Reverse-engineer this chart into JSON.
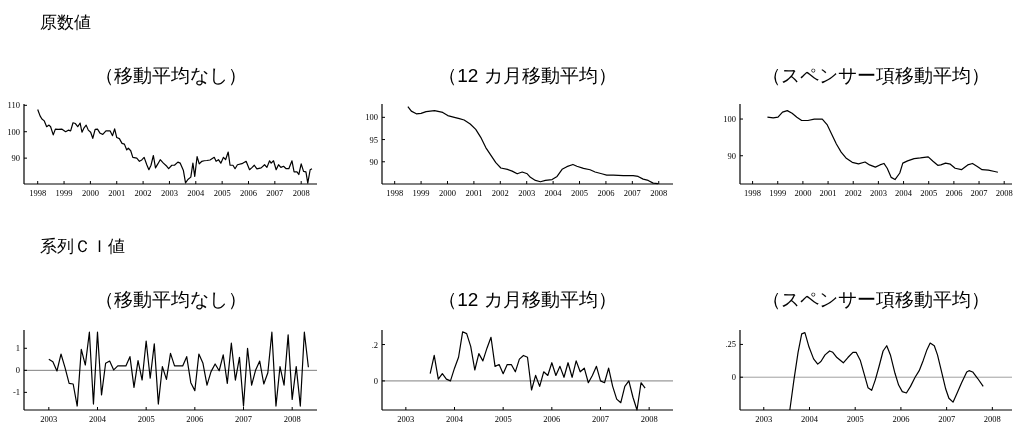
{
  "chart_data": [
    {
      "type": "other",
      "title": "原数値"
    },
    {
      "type": "line",
      "title": "（移動平均なし）",
      "color": "#000000",
      "xlim": [
        1997.48,
        2008.6
      ],
      "ylim": [
        80.2,
        110.5
      ],
      "xticks": [
        1998,
        1999,
        2000,
        2001,
        2002,
        2003,
        2004,
        2005,
        2006,
        2007,
        2008
      ],
      "yticks": [
        90,
        100,
        110
      ],
      "x": [
        1998.0,
        1998.09,
        1998.16,
        1998.25,
        1998.34,
        1998.43,
        1998.49,
        1998.59,
        1998.67,
        1998.78,
        1998.91,
        1999.06,
        1999.16,
        1999.25,
        1999.34,
        1999.43,
        1999.52,
        1999.61,
        1999.68,
        1999.76,
        1999.84,
        1999.92,
        2000.01,
        2000.09,
        2000.18,
        2000.27,
        2000.37,
        2000.47,
        2000.59,
        2000.75,
        2000.84,
        2000.92,
        2001.0,
        2001.1,
        2001.2,
        2001.29,
        2001.38,
        2001.44,
        2001.53,
        2001.61,
        2001.76,
        2001.86,
        2001.95,
        2002.04,
        2002.14,
        2002.22,
        2002.3,
        2002.39,
        2002.47,
        2002.56,
        2002.65,
        2002.77,
        2002.9,
        2002.97,
        2003.09,
        2003.19,
        2003.32,
        2003.41,
        2003.53,
        2003.61,
        2003.7,
        2003.81,
        2003.89,
        2003.96,
        2004.05,
        2004.13,
        2004.23,
        2004.32,
        2004.42,
        2004.54,
        2004.7,
        2004.77,
        2004.86,
        2004.95,
        2005.05,
        2005.13,
        2005.23,
        2005.3,
        2005.41,
        2005.49,
        2005.58,
        2005.75,
        2005.91,
        2006.04,
        2006.14,
        2006.22,
        2006.32,
        2006.48,
        2006.61,
        2006.7,
        2006.8,
        2006.86,
        2006.95,
        2007.05,
        2007.14,
        2007.23,
        2007.33,
        2007.43,
        2007.53,
        2007.65,
        2007.73,
        2007.84,
        2007.91,
        2008.0,
        2008.09,
        2008.18,
        2008.25,
        2008.34,
        2008.41
      ],
      "values": [
        108.4,
        106.0,
        104.8,
        104.1,
        101.9,
        102.5,
        101.9,
        98.8,
        101.0,
        100.9,
        101.0,
        100.0,
        100.6,
        100.3,
        103.4,
        103.1,
        101.9,
        103.3,
        99.8,
        101.5,
        102.5,
        100.6,
        99.8,
        97.5,
        100.9,
        101.0,
        99.4,
        99.0,
        100.3,
        100.3,
        98.5,
        101.1,
        97.8,
        97.4,
        95.6,
        95.3,
        93.1,
        93.8,
        92.8,
        90.3,
        90.0,
        88.8,
        89.3,
        90.3,
        87.5,
        85.6,
        87.3,
        91.0,
        86.3,
        87.8,
        89.4,
        88.1,
        86.9,
        86.0,
        87.3,
        87.3,
        88.5,
        88.1,
        85.3,
        80.6,
        81.9,
        82.8,
        88.1,
        83.1,
        90.6,
        87.8,
        88.8,
        89.0,
        89.1,
        89.3,
        90.3,
        88.8,
        89.4,
        88.1,
        90.3,
        89.4,
        92.3,
        87.3,
        87.3,
        86.0,
        87.5,
        87.9,
        88.8,
        85.6,
        86.5,
        87.3,
        85.9,
        86.3,
        87.5,
        86.5,
        89.0,
        88.1,
        89.0,
        85.6,
        87.5,
        86.5,
        86.9,
        86.0,
        86.0,
        89.0,
        84.8,
        84.8,
        83.8,
        87.8,
        85.0,
        84.8,
        80.5,
        85.6,
        86.0
      ]
    },
    {
      "type": "line",
      "title": "（12 カ月移動平均）",
      "color": "#000000",
      "xlim": [
        1997.52,
        2008.54
      ],
      "ylim": [
        85,
        103
      ],
      "xticks": [
        1998,
        1999,
        2000,
        2001,
        2002,
        2003,
        2004,
        2005,
        2006,
        2007,
        2008
      ],
      "yticks": [
        90,
        95,
        100
      ],
      "x": [
        1998.5,
        1998.63,
        1998.82,
        1999.0,
        1999.19,
        1999.51,
        1999.82,
        2000.01,
        2000.26,
        2000.45,
        2000.63,
        2000.86,
        2001.07,
        2001.26,
        2001.45,
        2001.64,
        2001.83,
        2002.02,
        2002.27,
        2002.45,
        2002.64,
        2002.83,
        2003.02,
        2003.14,
        2003.33,
        2003.52,
        2003.71,
        2003.96,
        2004.15,
        2004.34,
        2004.52,
        2004.75,
        2004.9,
        2005.15,
        2005.4,
        2005.59,
        2005.84,
        2006.03,
        2006.28,
        2006.66,
        2007.03,
        2007.22,
        2007.41,
        2007.6,
        2007.79,
        2007.97
      ],
      "values": [
        102.4,
        101.4,
        100.8,
        100.9,
        101.3,
        101.5,
        101.1,
        100.4,
        100.0,
        99.7,
        99.4,
        98.5,
        97.3,
        95.5,
        93.2,
        91.5,
        89.8,
        88.6,
        88.3,
        87.9,
        87.3,
        87.7,
        87.3,
        86.5,
        85.8,
        85.5,
        85.8,
        86.0,
        86.7,
        88.3,
        88.9,
        89.4,
        89.0,
        88.5,
        88.2,
        87.7,
        87.3,
        87.0,
        87.0,
        86.9,
        86.9,
        86.7,
        86.1,
        85.8,
        85.2,
        85.1
      ]
    },
    {
      "type": "line",
      "title": "（スペンサー項移動平均）",
      "color": "#000000",
      "xlim": [
        1997.5,
        2008.31
      ],
      "ylim": [
        82.3,
        104.1
      ],
      "xticks": [
        1998,
        1999,
        2000,
        2001,
        2002,
        2003,
        2004,
        2005,
        2006,
        2007,
        2008
      ],
      "yticks": [
        90,
        100
      ],
      "x": [
        1998.59,
        1998.82,
        1999.01,
        1999.19,
        1999.38,
        1999.57,
        1999.76,
        1999.95,
        2000.2,
        2000.45,
        2000.77,
        2000.96,
        2001.14,
        2001.33,
        2001.52,
        2001.71,
        2001.96,
        2002.21,
        2002.47,
        2002.65,
        2002.88,
        2003.06,
        2003.22,
        2003.35,
        2003.51,
        2003.66,
        2003.85,
        2003.97,
        2004.16,
        2004.42,
        2004.67,
        2004.98,
        2005.17,
        2005.36,
        2005.48,
        2005.67,
        2005.86,
        2006.05,
        2006.3,
        2006.55,
        2006.74,
        2006.93,
        2007.12,
        2007.37,
        2007.62,
        2007.75
      ],
      "values": [
        100.5,
        100.3,
        100.5,
        101.9,
        102.3,
        101.6,
        100.5,
        99.6,
        99.6,
        100.0,
        100.0,
        98.5,
        95.9,
        93.2,
        91.0,
        89.4,
        88.2,
        87.8,
        88.3,
        87.5,
        86.9,
        87.5,
        87.9,
        86.6,
        84.1,
        83.5,
        85.3,
        88.0,
        88.6,
        89.2,
        89.4,
        89.7,
        88.5,
        87.4,
        87.5,
        88.0,
        87.7,
        86.6,
        86.2,
        87.5,
        87.9,
        87.1,
        86.2,
        86.1,
        85.7,
        85.5
      ]
    },
    {
      "type": "other",
      "title": "系列ＣＩ値"
    },
    {
      "type": "line",
      "title": "（移動平均なし）",
      "color": "#000000",
      "xlim": [
        2002.49,
        2008.51
      ],
      "ylim": [
        -1.8,
        1.83
      ],
      "xticks": [
        2003,
        2004,
        2005,
        2006,
        2007,
        2008
      ],
      "yticks": [
        -1,
        0,
        1
      ],
      "ref_lines": [
        {
          "axis": "y",
          "value": 0,
          "color": "#808080"
        }
      ],
      "x": [
        2003.0,
        2003.083,
        2003.167,
        2003.25,
        2003.333,
        2003.417,
        2003.5,
        2003.583,
        2003.667,
        2003.75,
        2003.833,
        2003.917,
        2004.0,
        2004.083,
        2004.167,
        2004.25,
        2004.333,
        2004.417,
        2004.5,
        2004.583,
        2004.667,
        2004.75,
        2004.833,
        2004.917,
        2005.0,
        2005.083,
        2005.167,
        2005.25,
        2005.333,
        2005.417,
        2005.5,
        2005.583,
        2005.667,
        2005.75,
        2005.833,
        2005.917,
        2006.0,
        2006.083,
        2006.167,
        2006.25,
        2006.333,
        2006.417,
        2006.5,
        2006.583,
        2006.667,
        2006.75,
        2006.833,
        2006.917,
        2007.0,
        2007.083,
        2007.167,
        2007.25,
        2007.333,
        2007.417,
        2007.5,
        2007.583,
        2007.667,
        2007.75,
        2007.833,
        2007.917,
        2008.0,
        2008.083,
        2008.167,
        2008.25,
        2008.333
      ],
      "values": [
        0.5,
        0.39,
        -0.03,
        0.74,
        0.12,
        -0.59,
        -0.62,
        -1.62,
        0.95,
        0.24,
        1.73,
        -1.53,
        1.73,
        -1.12,
        0.32,
        0.42,
        0.02,
        0.2,
        0.2,
        0.2,
        0.62,
        -0.77,
        0.44,
        -0.44,
        1.33,
        -0.36,
        1.2,
        -1.53,
        0.17,
        -0.41,
        0.77,
        0.2,
        0.2,
        0.2,
        0.62,
        -0.56,
        -0.92,
        0.74,
        0.32,
        -0.67,
        -0.06,
        0.29,
        -0.02,
        0.7,
        -0.59,
        1.23,
        -0.44,
        0.59,
        -1.62,
        1.0,
        -0.67,
        0.02,
        0.42,
        -0.62,
        -0.11,
        1.73,
        -1.62,
        0.17,
        -0.67,
        1.61,
        -1.32,
        0.17,
        -1.62,
        1.73,
        0.14
      ]
    },
    {
      "type": "line",
      "title": "（12 カ月移動平均）",
      "color": "#000000",
      "xlim": [
        2002.51,
        2008.49
      ],
      "ylim": [
        -0.16,
        0.28
      ],
      "xticks": [
        2003,
        2004,
        2005,
        2006,
        2007,
        2008
      ],
      "yticks": [
        0,
        {
          "value": 0.2,
          "label": ".2"
        }
      ],
      "ref_lines": [
        {
          "axis": "y",
          "value": 0,
          "color": "#808080"
        }
      ],
      "x": [
        2003.5,
        2003.583,
        2003.667,
        2003.75,
        2003.833,
        2003.917,
        2004.0,
        2004.083,
        2004.167,
        2004.25,
        2004.333,
        2004.417,
        2004.5,
        2004.583,
        2004.667,
        2004.75,
        2004.833,
        2004.917,
        2005.0,
        2005.083,
        2005.167,
        2005.25,
        2005.333,
        2005.417,
        2005.5,
        2005.583,
        2005.667,
        2005.75,
        2005.833,
        2005.917,
        2006.0,
        2006.083,
        2006.167,
        2006.25,
        2006.333,
        2006.417,
        2006.5,
        2006.583,
        2006.667,
        2006.75,
        2006.833,
        2006.917,
        2007.0,
        2007.083,
        2007.167,
        2007.25,
        2007.333,
        2007.417,
        2007.5,
        2007.583,
        2007.667,
        2007.75,
        2007.833,
        2007.917
      ],
      "values": [
        0.04,
        0.14,
        0.01,
        0.04,
        0.01,
        0.0,
        0.07,
        0.13,
        0.27,
        0.26,
        0.19,
        0.06,
        0.15,
        0.11,
        0.18,
        0.24,
        0.08,
        0.09,
        0.04,
        0.09,
        0.09,
        0.05,
        0.12,
        0.14,
        0.13,
        -0.05,
        0.03,
        -0.03,
        0.05,
        0.03,
        0.1,
        0.03,
        0.08,
        0.02,
        0.1,
        0.02,
        0.11,
        0.05,
        0.07,
        -0.01,
        0.03,
        0.08,
        0.0,
        -0.01,
        0.07,
        -0.03,
        -0.1,
        -0.12,
        -0.03,
        0.0,
        -0.09,
        -0.16,
        -0.01,
        -0.04
      ]
    },
    {
      "type": "line",
      "title": "（スペンサー項移動平均）",
      "color": "#000000",
      "xlim": [
        2002.48,
        2008.43
      ],
      "ylim": [
        -0.25,
        0.36
      ],
      "xticks": [
        2003,
        2004,
        2005,
        2006,
        2007,
        2008
      ],
      "yticks": [
        0,
        {
          "value": 0.25,
          "label": ".25"
        }
      ],
      "ref_lines": [
        {
          "axis": "y",
          "value": 0,
          "color": "#a0a0a0"
        }
      ],
      "x": [
        2003.57,
        2003.66,
        2003.75,
        2003.83,
        2003.9,
        2003.99,
        2004.09,
        2004.18,
        2004.25,
        2004.34,
        2004.44,
        2004.51,
        2004.6,
        2004.74,
        2004.84,
        2004.95,
        2005.02,
        2005.11,
        2005.2,
        2005.28,
        2005.36,
        2005.44,
        2005.52,
        2005.61,
        2005.69,
        2005.77,
        2005.87,
        2005.95,
        2006.03,
        2006.12,
        2006.21,
        2006.31,
        2006.4,
        2006.49,
        2006.57,
        2006.64,
        2006.73,
        2006.8,
        2006.89,
        2006.98,
        2007.05,
        2007.14,
        2007.23,
        2007.33,
        2007.44,
        2007.49,
        2007.57,
        2007.68,
        2007.8
      ],
      "values": [
        -0.25,
        -0.02,
        0.19,
        0.33,
        0.34,
        0.23,
        0.14,
        0.1,
        0.12,
        0.17,
        0.2,
        0.19,
        0.15,
        0.11,
        0.15,
        0.19,
        0.19,
        0.13,
        0.02,
        -0.08,
        -0.1,
        -0.02,
        0.08,
        0.2,
        0.24,
        0.17,
        0.03,
        -0.06,
        -0.11,
        -0.12,
        -0.07,
        0.0,
        0.05,
        0.13,
        0.21,
        0.26,
        0.24,
        0.17,
        0.04,
        -0.09,
        -0.16,
        -0.19,
        -0.12,
        -0.04,
        0.04,
        0.05,
        0.04,
        -0.01,
        -0.07
      ]
    }
  ]
}
